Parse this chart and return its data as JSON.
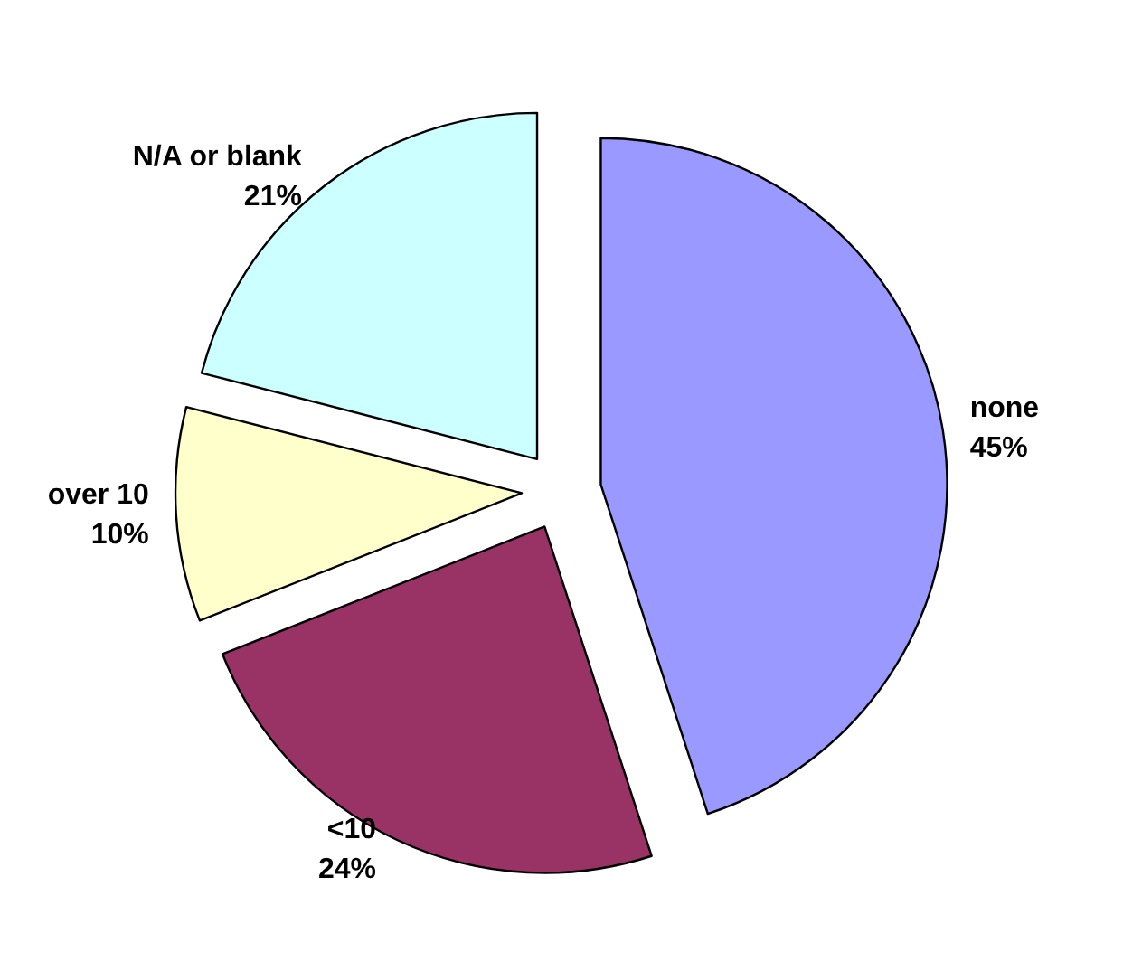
{
  "chart_data": {
    "type": "pie",
    "categories": [
      "none",
      "<10",
      "over 10",
      "N/A or blank"
    ],
    "values": [
      45,
      24,
      10,
      21
    ],
    "colors": [
      "#9999ff",
      "#993366",
      "#ffffcc",
      "#ccffff"
    ],
    "value_labels": [
      "45%",
      "24%",
      "10%",
      "21%"
    ],
    "legend": false
  }
}
